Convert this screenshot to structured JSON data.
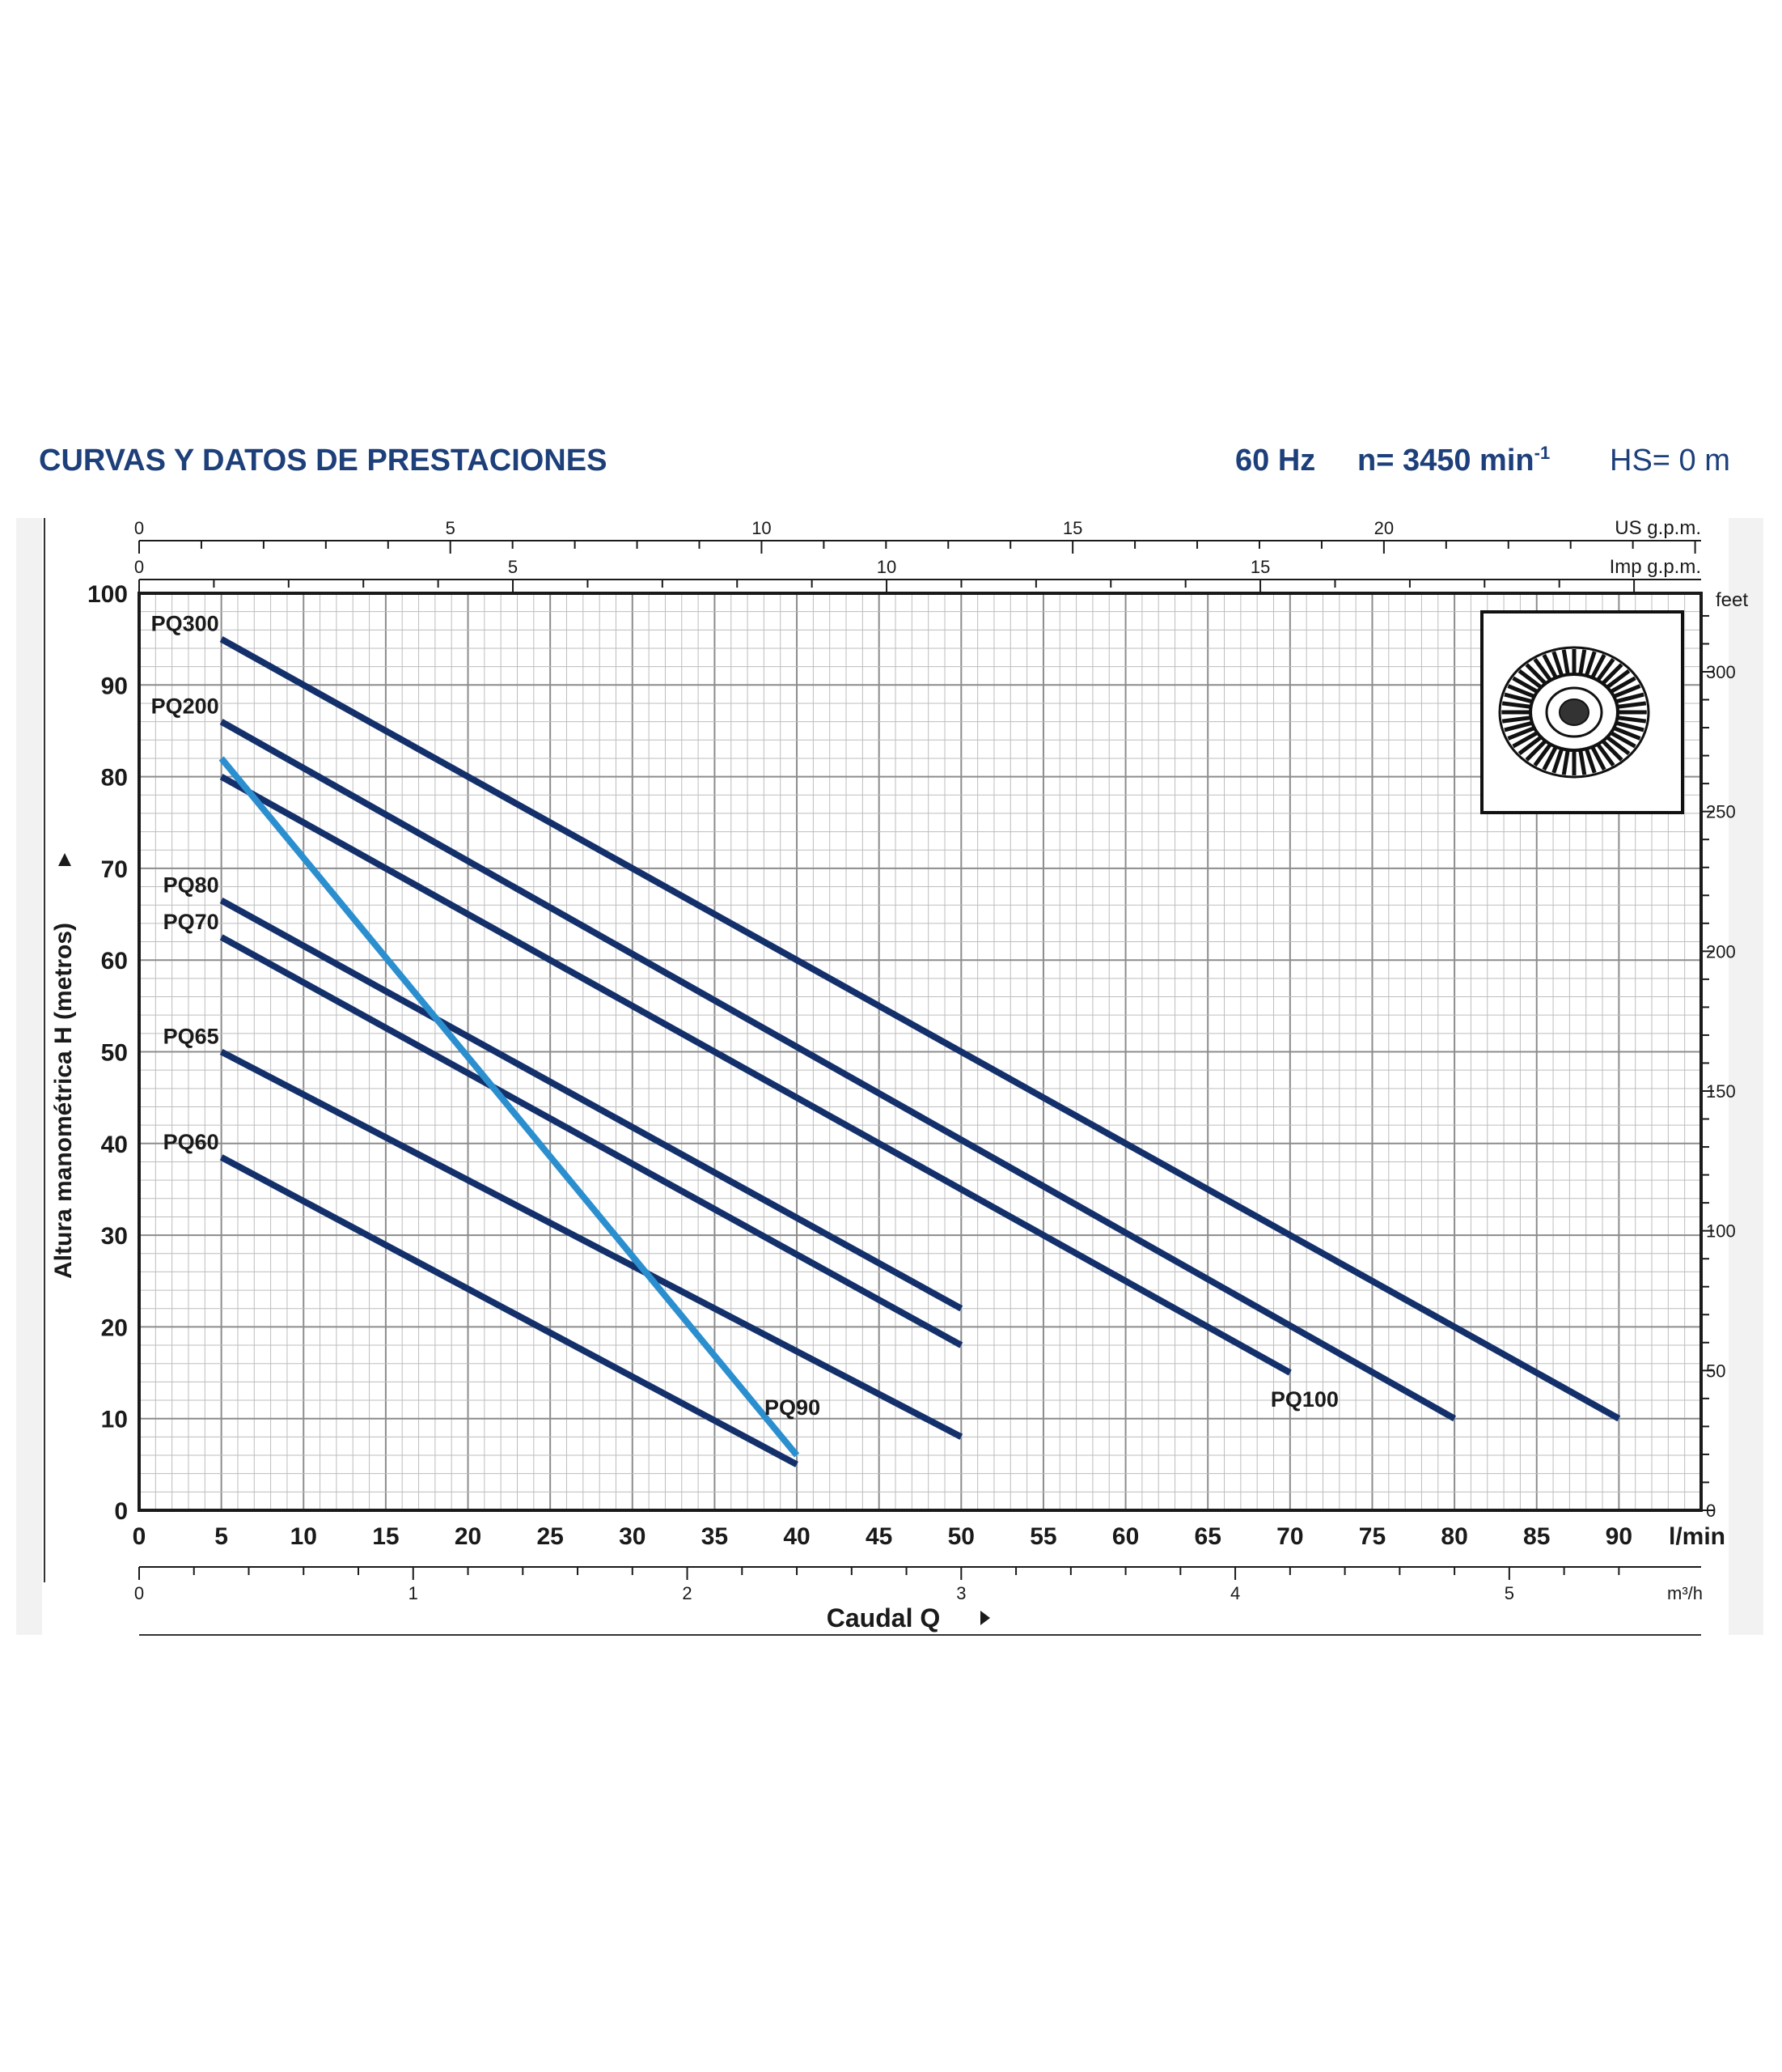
{
  "header": {
    "title": "CURVAS Y DATOS DE PRESTACIONES",
    "frequency": "60 Hz",
    "speed": "n= 3450 min",
    "speed_exponent": "-1",
    "hs": "HS= 0 m"
  },
  "colors": {
    "header_blue": "#1d3f7a",
    "series_dark": "#14306b",
    "series_light": "#2b8fcf",
    "grid": "#9a9a9a",
    "axis": "#1a1a1a",
    "backdrop": "#f2f2f2"
  },
  "chart_data": {
    "type": "line",
    "xlabel": "Caudal Q",
    "ylabel": "Altura manométrica H (metros)",
    "x_unit": "l/min",
    "xlim": [
      0,
      95
    ],
    "ylim": [
      0,
      100
    ],
    "x_ticks": [
      0,
      5,
      10,
      15,
      20,
      25,
      30,
      35,
      40,
      45,
      50,
      55,
      60,
      65,
      70,
      75,
      80,
      85,
      90
    ],
    "y_ticks": [
      0,
      10,
      20,
      30,
      40,
      50,
      60,
      70,
      80,
      90,
      100
    ],
    "grid": true,
    "secondary_axes": {
      "top_us_gpm": {
        "label": "US g.p.m.",
        "ticks": [
          0,
          5,
          10,
          15,
          20
        ]
      },
      "top_imp_gpm": {
        "label": "Imp g.p.m.",
        "ticks": [
          0,
          5,
          10,
          15
        ]
      },
      "right_feet": {
        "label": "feet",
        "ticks": [
          0,
          50,
          100,
          150,
          200,
          250,
          300
        ]
      },
      "bottom_m3h": {
        "label": "m³/h",
        "ticks": [
          0,
          1,
          2,
          3,
          4,
          5
        ]
      }
    },
    "series": [
      {
        "name": "PQ300",
        "points": [
          [
            5,
            95
          ],
          [
            90,
            10
          ]
        ]
      },
      {
        "name": "PQ200",
        "points": [
          [
            5,
            86
          ],
          [
            80,
            10
          ]
        ]
      },
      {
        "name": "PQ100",
        "points": [
          [
            5,
            80
          ],
          [
            70,
            15
          ]
        ]
      },
      {
        "name": "PQ90",
        "points": [
          [
            5,
            82
          ],
          [
            40,
            6
          ]
        ]
      },
      {
        "name": "PQ80",
        "points": [
          [
            5,
            66.5
          ],
          [
            50,
            22
          ]
        ]
      },
      {
        "name": "PQ70",
        "points": [
          [
            5,
            62.5
          ],
          [
            50,
            18
          ]
        ]
      },
      {
        "name": "PQ65",
        "points": [
          [
            5,
            50
          ],
          [
            50,
            8
          ]
        ]
      },
      {
        "name": "PQ60",
        "points": [
          [
            5,
            38.5
          ],
          [
            40,
            5
          ]
        ]
      }
    ]
  }
}
